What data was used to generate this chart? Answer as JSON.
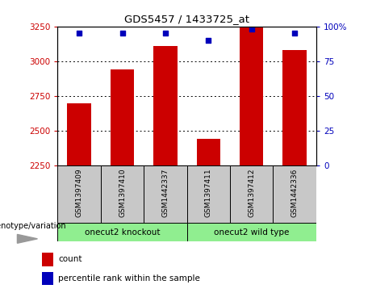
{
  "title": "GDS5457 / 1433725_at",
  "samples": [
    "GSM1397409",
    "GSM1397410",
    "GSM1442337",
    "GSM1397411",
    "GSM1397412",
    "GSM1442336"
  ],
  "counts": [
    2700,
    2940,
    3110,
    2440,
    3250,
    3080
  ],
  "percentile_ranks": [
    95,
    95,
    95,
    90,
    98,
    95
  ],
  "groups": [
    {
      "label": "onecut2 knockout",
      "indices": [
        0,
        1,
        2
      ],
      "color": "#90EE90"
    },
    {
      "label": "onecut2 wild type",
      "indices": [
        3,
        4,
        5
      ],
      "color": "#90EE90"
    }
  ],
  "ylim_left": [
    2250,
    3250
  ],
  "ylim_right": [
    0,
    100
  ],
  "yticks_left": [
    2250,
    2500,
    2750,
    3000,
    3250
  ],
  "yticks_right": [
    0,
    25,
    50,
    75,
    100
  ],
  "ytick_labels_right": [
    "0",
    "25",
    "50",
    "75",
    "100%"
  ],
  "bar_color": "#CC0000",
  "dot_color": "#0000BB",
  "bar_width": 0.55,
  "bg_color_plot": "#ffffff",
  "bg_color_sample": "#C8C8C8",
  "left_label_color": "#CC0000",
  "right_label_color": "#0000BB",
  "legend_red_label": "count",
  "legend_blue_label": "percentile rank within the sample",
  "genotype_label": "genotype/variation"
}
